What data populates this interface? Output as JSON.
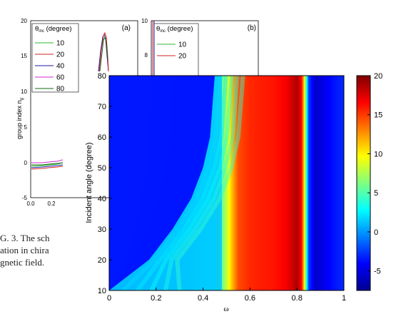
{
  "background_figure": {
    "panel_a": {
      "label": "(a)",
      "legend_title_prefix": "θ",
      "legend_title_sub": "inc",
      "legend_title_suffix": " (degree)",
      "legend_entries": [
        {
          "label": "10",
          "color": "#2db82d"
        },
        {
          "label": "20",
          "color": "#d42020"
        },
        {
          "label": "40",
          "color": "#1a1aa8"
        },
        {
          "label": "60",
          "color": "#d12ad1"
        },
        {
          "label": "80",
          "color": "#106b10"
        }
      ],
      "ylabel_prefix": "group index n",
      "ylabel_sub": "g",
      "y_ticks": [
        "20",
        "15",
        "10",
        "5",
        "0",
        "-5"
      ],
      "x_ticks": [
        "0.0",
        "0.2"
      ]
    },
    "panel_b": {
      "label": "(b)",
      "legend_title_prefix": "θ",
      "legend_title_sub": "inc",
      "legend_title_suffix": " (degree)",
      "legend_entries": [
        {
          "label": "10",
          "color": "#2db82d"
        },
        {
          "label": "20",
          "color": "#d42020"
        }
      ],
      "y_ticks": [
        "10",
        "8"
      ]
    },
    "caption_lines": [
      "G. 3.  The sch",
      "ation in chira",
      "gnetic field."
    ]
  },
  "chart_data": {
    "type": "heatmap",
    "xlabel": "ω",
    "ylabel": "Incident angle (degree)",
    "xlim": [
      0,
      1
    ],
    "ylim": [
      10,
      80
    ],
    "x_ticks": [
      "0",
      "0.2",
      "0.4",
      "0.6",
      "0.8",
      "1"
    ],
    "y_ticks": [
      "10",
      "20",
      "30",
      "40",
      "50",
      "60",
      "70",
      "80"
    ],
    "colorbar": {
      "range": [
        -7.5,
        20
      ],
      "ticks": [
        "20",
        "15",
        "10",
        "5",
        "0",
        "-5"
      ],
      "colormap": "jet"
    },
    "boundary_curve": {
      "description_points_x": [
        0.0,
        0.17,
        0.27,
        0.35,
        0.4,
        0.43,
        0.45
      ],
      "description_points_y": [
        10,
        20,
        30,
        40,
        50,
        60,
        80
      ]
    },
    "column_profile": {
      "omega": [
        0.0,
        0.3,
        0.44,
        0.48,
        0.5,
        0.52,
        0.55,
        0.6,
        0.65,
        0.7,
        0.75,
        0.78,
        0.8,
        0.82,
        0.84,
        0.85,
        0.88,
        0.92,
        0.96,
        1.0
      ],
      "value_left_region": [
        -0.5,
        1.2,
        3.0,
        5.5,
        8.0,
        11.0,
        14.5,
        15.5,
        15.8,
        16.0,
        16.7,
        17.8,
        18.8,
        16.5,
        4.5,
        -2.5,
        -5.5,
        -4.5,
        -3.5,
        -3.0
      ],
      "value_upper_left_region": [
        -3.5,
        -2.6,
        -1.5
      ]
    }
  }
}
